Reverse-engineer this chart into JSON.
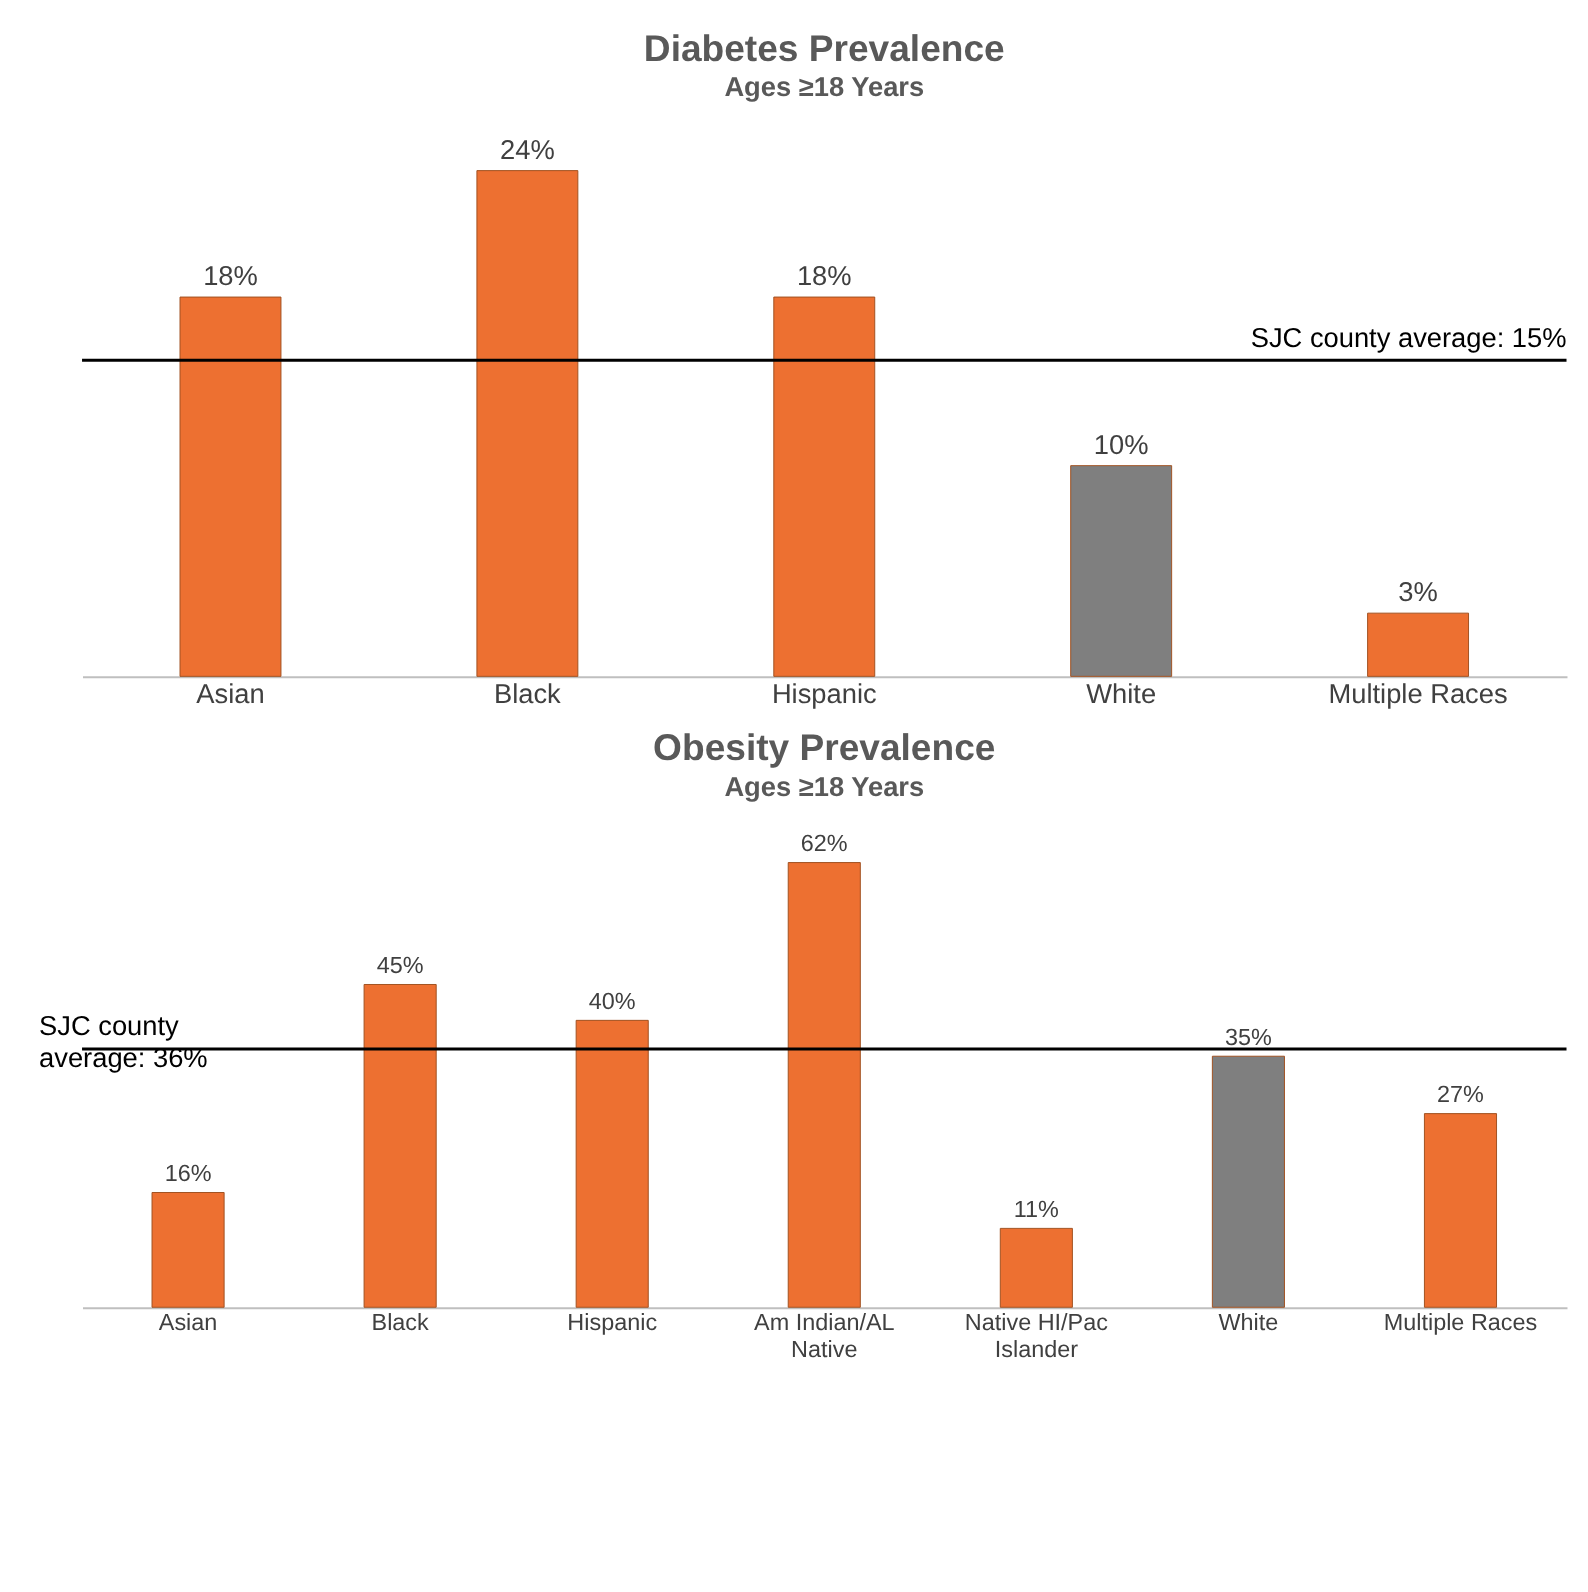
{
  "chart_data": [
    {
      "type": "bar",
      "title": "Diabetes Prevalence",
      "subtitle": "Ages ≥18 Years",
      "categories": [
        "Asian",
        "Black",
        "Hispanic",
        "White",
        "Multiple Races"
      ],
      "values": [
        18,
        24,
        18,
        10,
        3
      ],
      "colors": [
        "#ed7031",
        "#ed7031",
        "#ed7031",
        "#7f7f7f",
        "#ed7031"
      ],
      "value_labels": [
        "18%",
        "24%",
        "18%",
        "10%",
        "3%"
      ],
      "ref_lines": [
        {
          "axis": "y",
          "value": 15,
          "label": "SJC county average: 15%",
          "color": "#000000"
        }
      ]
    },
    {
      "type": "bar",
      "title": "Obesity Prevalence",
      "subtitle": "Ages ≥18 Years",
      "categories": [
        "Asian",
        "Black",
        "Hispanic",
        "Am Indian/AL Native",
        "Native HI/Pac Islander",
        "White",
        "Multiple Races"
      ],
      "values": [
        16,
        45,
        40,
        62,
        11,
        35,
        27
      ],
      "colors": [
        "#ed7031",
        "#ed7031",
        "#ed7031",
        "#ed7031",
        "#ed7031",
        "#7f7f7f",
        "#ed7031"
      ],
      "value_labels": [
        "16%",
        "45%",
        "40%",
        "62%",
        "11%",
        "35%",
        "27%"
      ],
      "ref_lines": [
        {
          "axis": "y",
          "value": 36,
          "label": "SJC county average: 36%",
          "color": "#000000"
        }
      ]
    }
  ]
}
